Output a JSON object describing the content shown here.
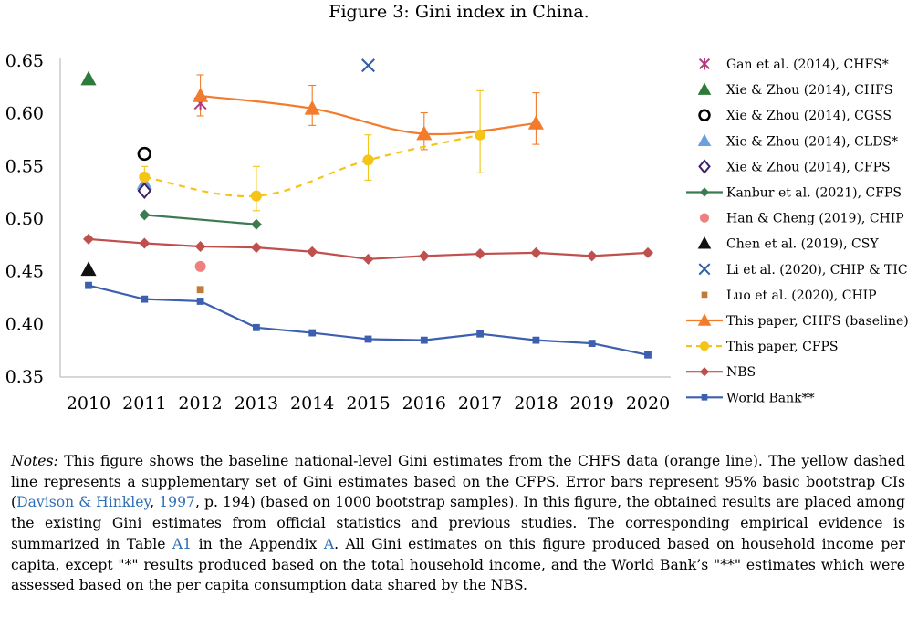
{
  "figure_caption": "Figure 3: Gini index in China.",
  "chart_data": {
    "type": "line",
    "categories": [
      "2010",
      "2011",
      "2012",
      "2013",
      "2014",
      "2015",
      "2016",
      "2017",
      "2018",
      "2019",
      "2020"
    ],
    "ylim": [
      0.35,
      0.65
    ],
    "yticks": [
      "0.35",
      "0.40",
      "0.45",
      "0.50",
      "0.55",
      "0.60",
      "0.65"
    ],
    "grid": false,
    "legend_position": "right",
    "series": [
      {
        "name": "Gan et al. (2014), CHFS*",
        "marker": "asterisk",
        "color": "#b03a7c",
        "line": false,
        "points": [
          {
            "x": "2012",
            "y": 0.61
          }
        ]
      },
      {
        "name": "Xie & Zhou (2014), CHFS",
        "marker": "triangle",
        "color": "#2e7a3a",
        "line": false,
        "points": [
          {
            "x": "2010",
            "y": 0.633
          }
        ]
      },
      {
        "name": "Xie & Zhou (2014), CGSS",
        "marker": "circle-open",
        "color": "#000000",
        "line": false,
        "points": [
          {
            "x": "2011",
            "y": 0.562
          }
        ]
      },
      {
        "name": "Xie & Zhou (2014), CLDS*",
        "marker": "triangle",
        "color": "#6d9fdc",
        "line": false,
        "points": [
          {
            "x": "2011",
            "y": 0.534
          }
        ]
      },
      {
        "name": "Xie & Zhou (2014), CFPS",
        "marker": "diamond-open",
        "color": "#3d1f6b",
        "line": false,
        "points": [
          {
            "x": "2011",
            "y": 0.527
          }
        ]
      },
      {
        "name": "Kanbur et al. (2021), CFPS",
        "marker": "diamond",
        "color": "#3c7a52",
        "line": true,
        "dash": false,
        "points": [
          {
            "x": "2011",
            "y": 0.504
          },
          {
            "x": "2013",
            "y": 0.495
          }
        ]
      },
      {
        "name": "Han & Cheng (2019), CHIP",
        "marker": "circle",
        "color": "#f08080",
        "line": false,
        "points": [
          {
            "x": "2012",
            "y": 0.455
          }
        ]
      },
      {
        "name": "Chen et al. (2019), CSY",
        "marker": "triangle",
        "color": "#111111",
        "line": false,
        "points": [
          {
            "x": "2010",
            "y": 0.452
          }
        ]
      },
      {
        "name": "Li et al. (2020), CHIP & TIC",
        "marker": "cross",
        "color": "#2e5fa8",
        "line": false,
        "points": [
          {
            "x": "2015",
            "y": 0.646
          }
        ]
      },
      {
        "name": "Luo et al. (2020), CHIP",
        "marker": "square",
        "color": "#c07a3a",
        "line": false,
        "points": [
          {
            "x": "2012",
            "y": 0.433
          }
        ]
      },
      {
        "name": "This paper, CHFS (baseline)",
        "marker": "triangle",
        "color": "#f27c2c",
        "line": true,
        "dash": false,
        "points": [
          {
            "x": "2012",
            "y": 0.617,
            "lo": 0.598,
            "hi": 0.637
          },
          {
            "x": "2014",
            "y": 0.605,
            "lo": 0.589,
            "hi": 0.627
          },
          {
            "x": "2016",
            "y": 0.581,
            "lo": 0.566,
            "hi": 0.601
          },
          {
            "x": "2018",
            "y": 0.591,
            "lo": 0.571,
            "hi": 0.62
          }
        ]
      },
      {
        "name": "This paper, CFPS",
        "marker": "circle",
        "color": "#f5c416",
        "line": true,
        "dash": true,
        "points": [
          {
            "x": "2011",
            "y": 0.54,
            "lo": 0.531,
            "hi": 0.55
          },
          {
            "x": "2013",
            "y": 0.522,
            "lo": 0.508,
            "hi": 0.55
          },
          {
            "x": "2015",
            "y": 0.556,
            "lo": 0.537,
            "hi": 0.58
          },
          {
            "x": "2017",
            "y": 0.58,
            "lo": 0.544,
            "hi": 0.622
          }
        ]
      },
      {
        "name": "NBS",
        "marker": "diamond",
        "color": "#c0504d",
        "line": true,
        "dash": false,
        "points": [
          {
            "x": "2010",
            "y": 0.481
          },
          {
            "x": "2011",
            "y": 0.477
          },
          {
            "x": "2012",
            "y": 0.474
          },
          {
            "x": "2013",
            "y": 0.473
          },
          {
            "x": "2014",
            "y": 0.469
          },
          {
            "x": "2015",
            "y": 0.462
          },
          {
            "x": "2016",
            "y": 0.465
          },
          {
            "x": "2017",
            "y": 0.467
          },
          {
            "x": "2018",
            "y": 0.468
          },
          {
            "x": "2019",
            "y": 0.465
          },
          {
            "x": "2020",
            "y": 0.468
          }
        ]
      },
      {
        "name": "World Bank**",
        "marker": "square",
        "color": "#3c5fb0",
        "line": true,
        "dash": false,
        "points": [
          {
            "x": "2010",
            "y": 0.437
          },
          {
            "x": "2011",
            "y": 0.424
          },
          {
            "x": "2012",
            "y": 0.422
          },
          {
            "x": "2013",
            "y": 0.397
          },
          {
            "x": "2014",
            "y": 0.392
          },
          {
            "x": "2015",
            "y": 0.386
          },
          {
            "x": "2016",
            "y": 0.385
          },
          {
            "x": "2017",
            "y": 0.391
          },
          {
            "x": "2018",
            "y": 0.385
          },
          {
            "x": "2019",
            "y": 0.382
          },
          {
            "x": "2020",
            "y": 0.371
          }
        ]
      }
    ]
  },
  "notes": {
    "label": "Notes:",
    "p1": " This figure shows the baseline national-level Gini estimates from the CHFS data (orange line). The yellow dashed line represents a supplementary set of Gini estimates based on the CFPS. Error bars represent 95% basic bootstrap CIs (",
    "cite_authors": "Davison & Hinkley",
    "cite_sep": ", ",
    "cite_year": "1997",
    "p2": ", p. 194) (based on 1000 bootstrap samples). In this figure, the obtained results are placed among the existing Gini estimates from official statistics and previous studies.  The corresponding empirical evidence is summarized in Table ",
    "table_ref": "A1",
    "p3": " in the Appendix ",
    "appendix_ref": "A",
    "p4": ". All Gini estimates on this figure produced based on household income per capita, except \"*\" results produced based on the total household income, and the World Bank’s \"**\" estimates which were assessed based on the per capita consumption data shared by the NBS."
  }
}
